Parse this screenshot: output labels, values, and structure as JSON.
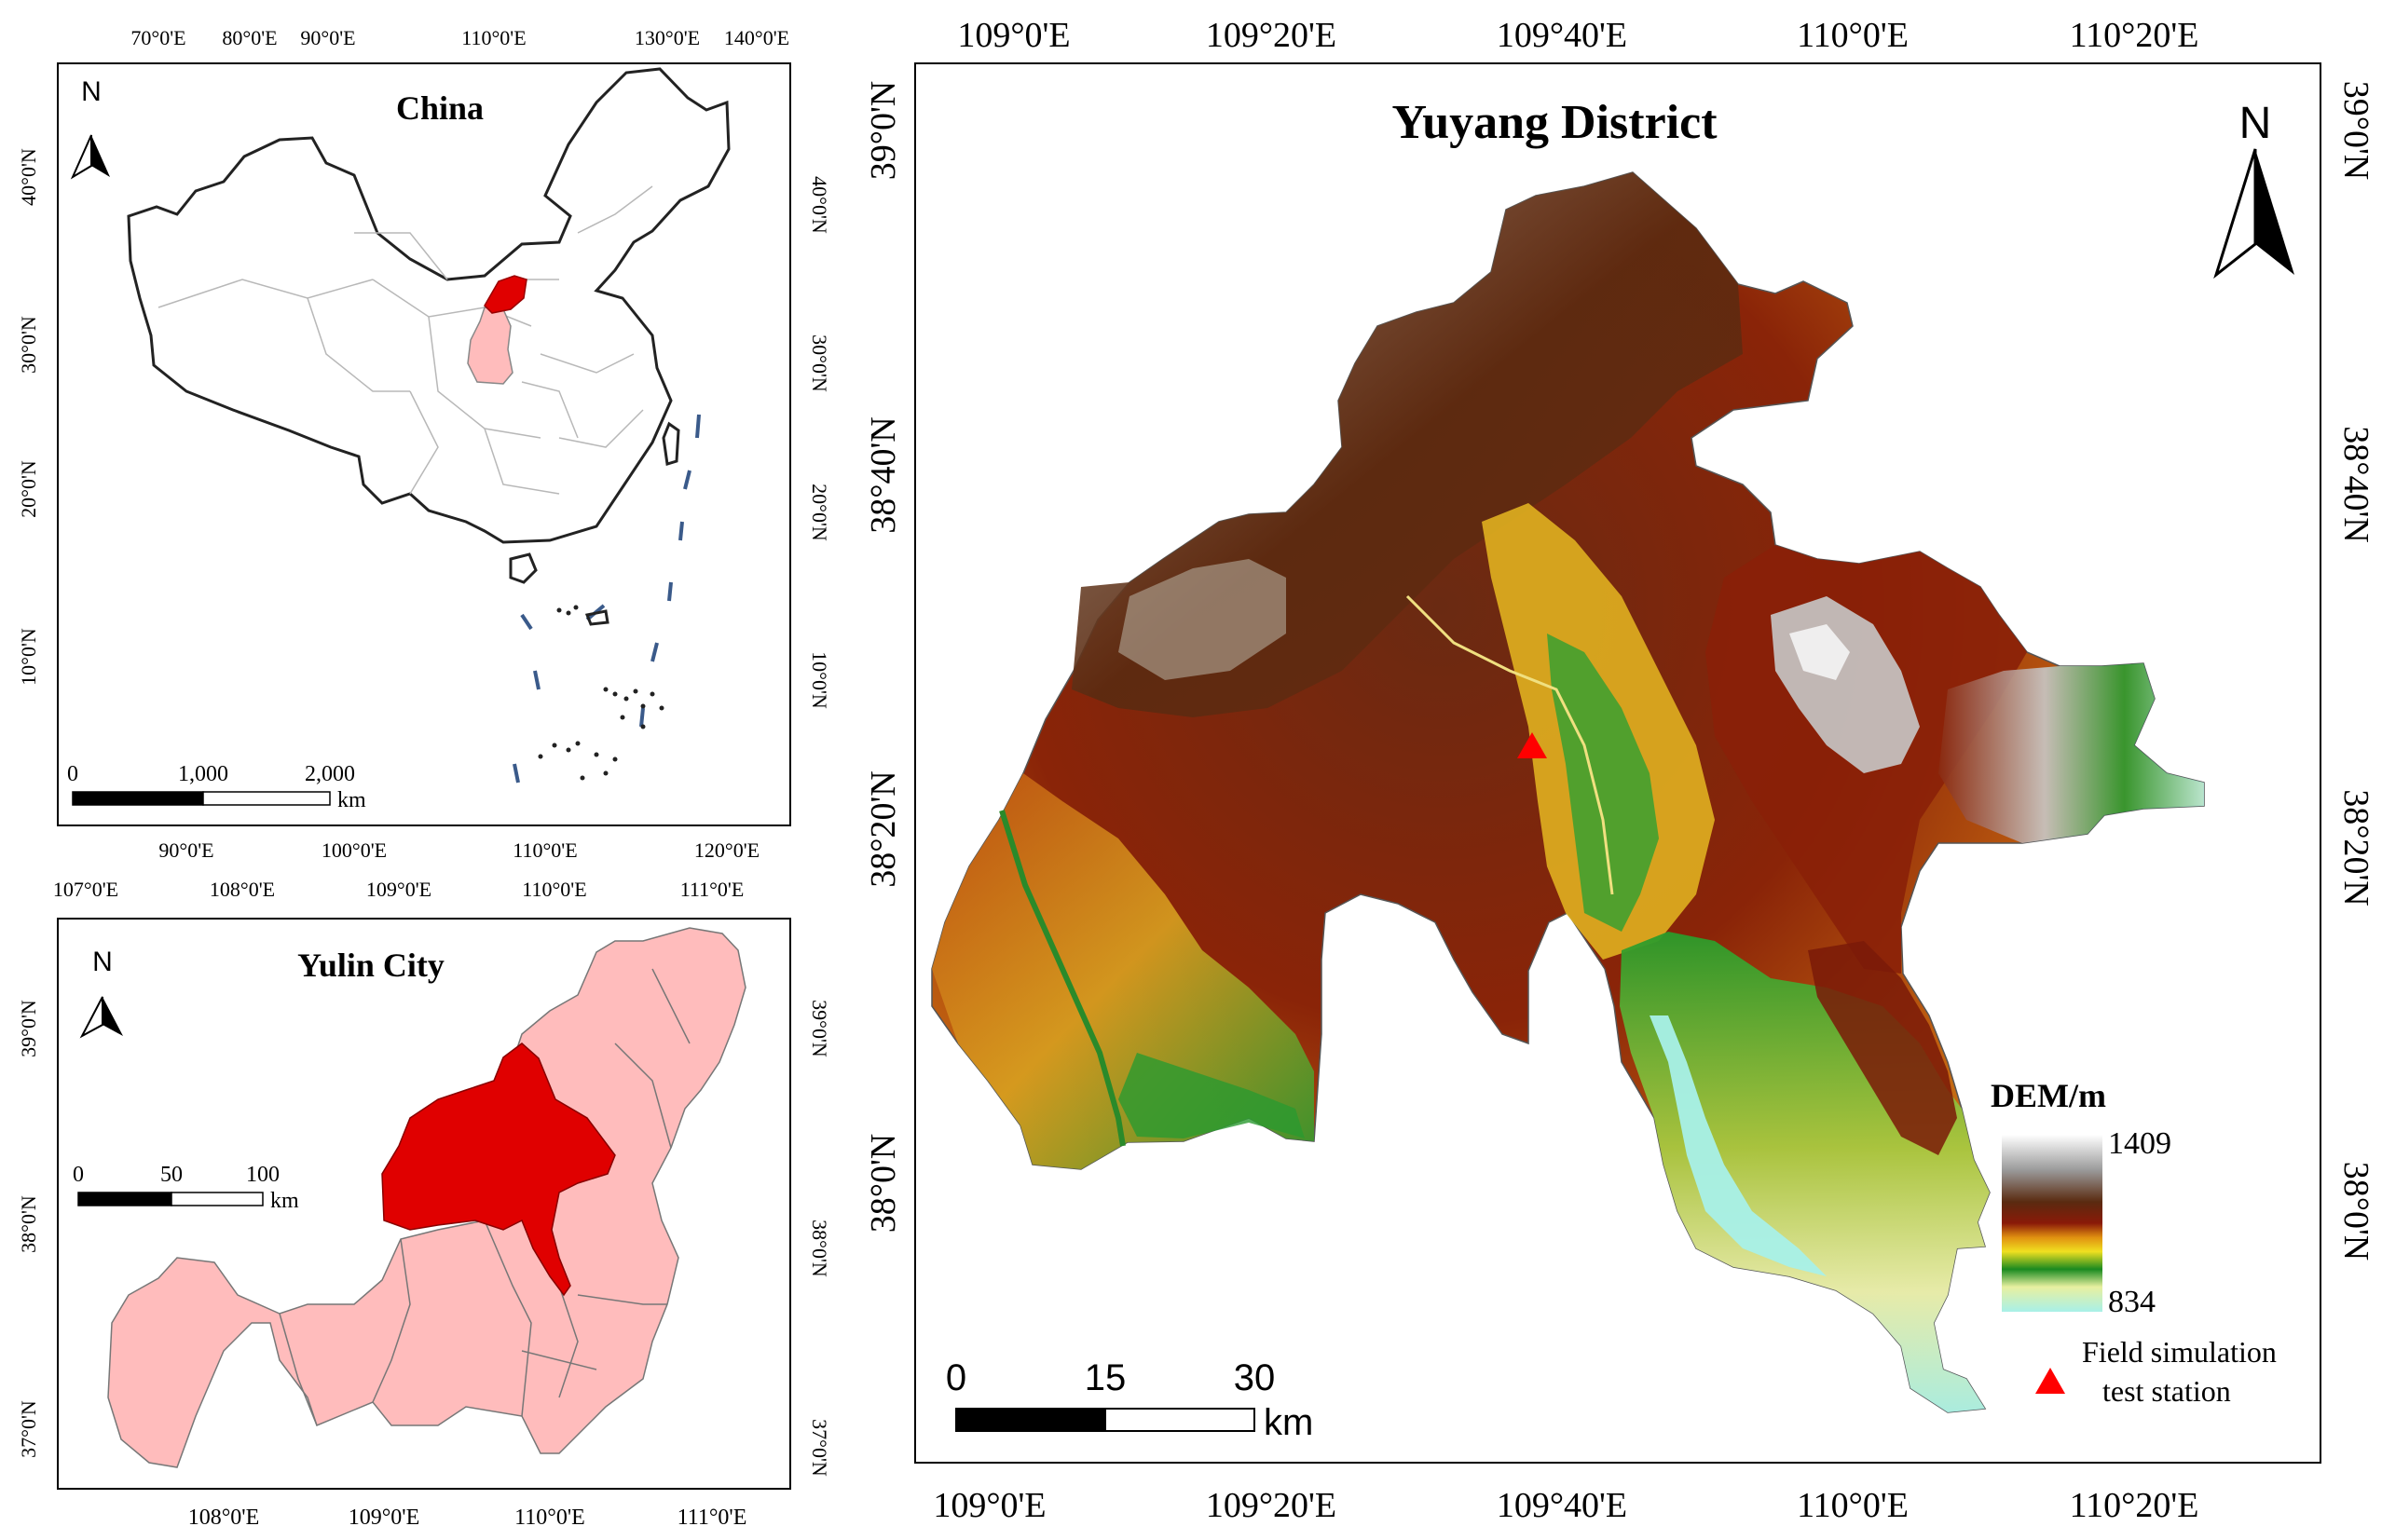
{
  "china": {
    "title": "China",
    "north": "N",
    "top_ticks": [
      "70°0'E",
      "80°0'E",
      "90°0'E",
      "110°0'E",
      "130°0'E",
      "140°0'E"
    ],
    "bottom_ticks": [
      "90°0'E",
      "100°0'E",
      "110°0'E",
      "120°0'E"
    ],
    "left_ticks": [
      "40°0'N",
      "30°0'N",
      "20°0'N",
      "10°0'N"
    ],
    "right_ticks": [
      "40°0'N",
      "30°0'N",
      "20°0'N",
      "10°0'N"
    ],
    "scale_labels": [
      "0",
      "1,000",
      "2,000"
    ],
    "scale_unit": "km",
    "colors": {
      "highlight": "#e00000",
      "province": "#ffbcbc"
    }
  },
  "yulin": {
    "title": "Yulin City",
    "north": "N",
    "top_ticks": [
      "107°0'E",
      "108°0'E",
      "109°0'E",
      "110°0'E",
      "111°0'E"
    ],
    "bottom_ticks": [
      "108°0'E",
      "109°0'E",
      "110°0'E",
      "111°0'E"
    ],
    "left_ticks": [
      "39°0'N",
      "38°0'N",
      "37°0'N"
    ],
    "right_ticks": [
      "39°0'N",
      "38°0'N",
      "37°0'N"
    ],
    "scale_labels": [
      "0",
      "50",
      "100"
    ],
    "scale_unit": "km",
    "colors": {
      "fill": "#ffbcbc",
      "district": "#e00000"
    }
  },
  "yuyang": {
    "title": "Yuyang District",
    "north": "N",
    "top_ticks": [
      "109°0'E",
      "109°20'E",
      "109°40'E",
      "110°0'E",
      "110°20'E"
    ],
    "bottom_ticks": [
      "109°0'E",
      "109°20'E",
      "109°40'E",
      "110°0'E",
      "110°20'E"
    ],
    "left_ticks": [
      "39°0'N",
      "38°40'N",
      "38°20'N",
      "38°0'N"
    ],
    "right_ticks": [
      "39°0'N",
      "38°40'N",
      "38°20'N",
      "38°0'N"
    ],
    "scale_labels": [
      "0",
      "15",
      "30"
    ],
    "scale_unit": "km",
    "legend": {
      "title": "DEM/m",
      "max": "1409",
      "min": "834",
      "station_line1": "Field simulation",
      "station_line2": "test station"
    },
    "colors": {
      "station": "#ff0000"
    }
  }
}
